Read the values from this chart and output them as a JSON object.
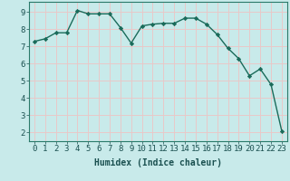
{
  "x": [
    0,
    1,
    2,
    3,
    4,
    5,
    6,
    7,
    8,
    9,
    10,
    11,
    12,
    13,
    14,
    15,
    16,
    17,
    18,
    19,
    20,
    21,
    22,
    23
  ],
  "y": [
    7.3,
    7.45,
    7.8,
    7.8,
    9.1,
    8.9,
    8.9,
    8.9,
    8.1,
    7.2,
    8.2,
    8.3,
    8.35,
    8.35,
    8.65,
    8.65,
    8.3,
    7.7,
    6.9,
    6.3,
    5.3,
    5.7,
    4.8,
    2.1
  ],
  "line_color": "#1a6b5a",
  "marker": "D",
  "markersize": 2.2,
  "linewidth": 1.0,
  "background_color": "#c8eaea",
  "grid_color": "#e8c8c8",
  "xlabel": "Humidex (Indice chaleur)",
  "xlabel_fontsize": 7,
  "tick_fontsize": 6.5,
  "ylim": [
    1.5,
    9.6
  ],
  "xlim": [
    -0.5,
    23.5
  ],
  "yticks": [
    2,
    3,
    4,
    5,
    6,
    7,
    8,
    9
  ],
  "xticks": [
    0,
    1,
    2,
    3,
    4,
    5,
    6,
    7,
    8,
    9,
    10,
    11,
    12,
    13,
    14,
    15,
    16,
    17,
    18,
    19,
    20,
    21,
    22,
    23
  ]
}
